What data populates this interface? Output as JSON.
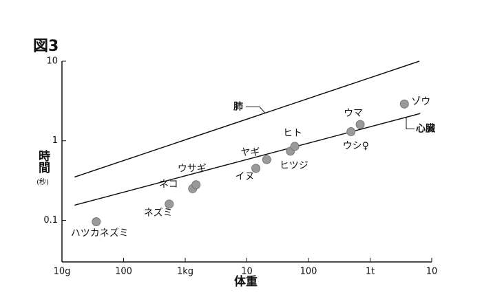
{
  "chart_data": {
    "type": "scatter",
    "title": "図3",
    "y_label": "時間",
    "y_label_unit": "(秒)",
    "x_label": "体重",
    "log_x": true,
    "log_y": true,
    "xlim": [
      10,
      10000000
    ],
    "xticks": [
      {
        "value": 10,
        "label": "10g"
      },
      100,
      {
        "value": 1000,
        "label": "1kg"
      },
      {
        "value": 10000,
        "label": "10"
      },
      {
        "value": 100000,
        "label": "100"
      },
      {
        "value": 1000000,
        "label": "1t"
      },
      {
        "value": 10000000,
        "label": "10"
      }
    ],
    "ylim": [
      0.03,
      10
    ],
    "yticks": [
      0.1,
      1,
      10
    ],
    "points": {
      "color": "#9a9a9a",
      "labels": [
        "ハツカネズミ",
        "ネズミ",
        "ネコ",
        "ウサギ",
        "イヌ",
        "ヤギ",
        "ヒツジ",
        "ヒト",
        "ウシ♀",
        "ウマ",
        "ゾウ"
      ],
      "x": [
        36,
        550,
        1320,
        1500,
        14000,
        21000,
        51000,
        60000,
        490000,
        690000,
        3600000
      ],
      "values": [
        0.096,
        0.16,
        0.25,
        0.28,
        0.45,
        0.58,
        0.74,
        0.85,
        1.3,
        1.6,
        2.9
      ]
    },
    "lines": [
      {
        "name": "肺",
        "color": "#111111",
        "x": [
          16,
          6300000
        ],
        "values": [
          0.35,
          10
        ]
      },
      {
        "name": "心臓",
        "color": "#111111",
        "x": [
          16,
          6500000
        ],
        "values": [
          0.155,
          2.2
        ]
      }
    ]
  }
}
